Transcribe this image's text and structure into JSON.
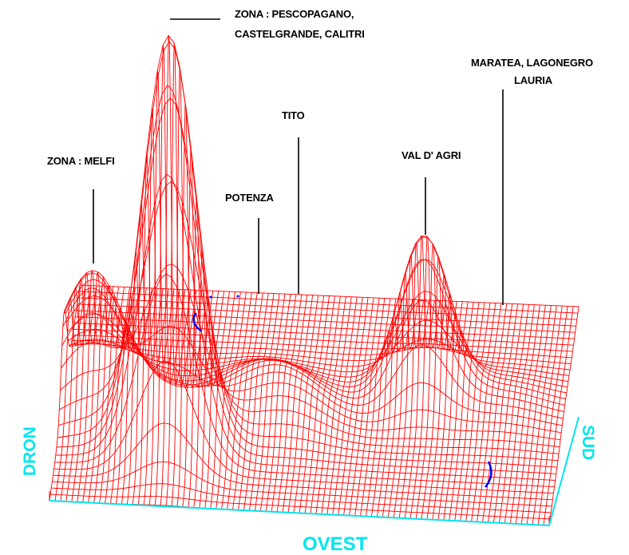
{
  "labels": {
    "melfi": "ZONA : MELFI",
    "pescopagano_1": "ZONA : PESCOPAGANO,",
    "pescopagano_2": "CASTELGRANDE, CALITRI",
    "potenza": "POTENZA",
    "tito": "TITO",
    "val_dagri": "VAL D' AGRI",
    "maratea_1": "MARATEA, LAGONEGRO",
    "maratea_2": "LAURIA"
  },
  "axes": {
    "left": "DRON",
    "right": "SUD",
    "bottom": "OVEST"
  },
  "colors": {
    "mesh": "#ff0000",
    "axis_text": "#00e5ee",
    "markers": "#0000ff",
    "leader_lines": "#000000"
  }
}
